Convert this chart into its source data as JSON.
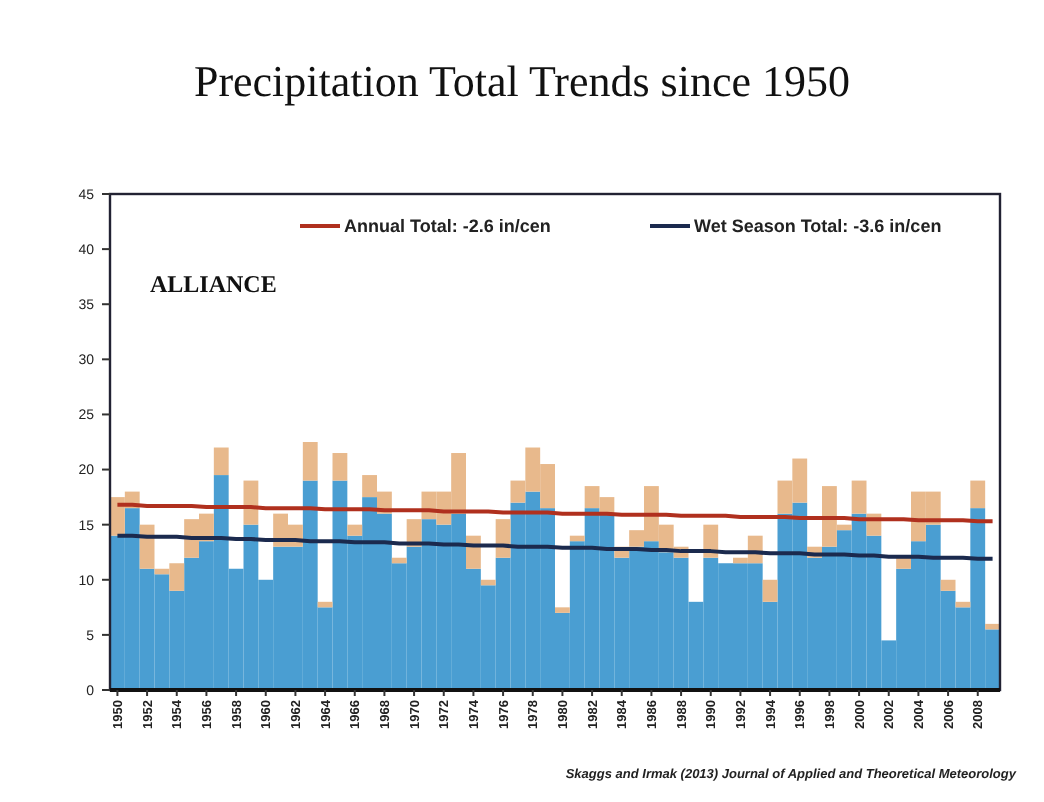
{
  "chart_data": {
    "type": "bar",
    "title": "Precipitation Total Trends since 1950",
    "annotations": [
      "ALLIANCE",
      "Skaggs and Irmak (2013) Journal of Applied and Theoretical Meteorology"
    ],
    "x": [
      1950,
      1951,
      1952,
      1953,
      1954,
      1955,
      1956,
      1957,
      1958,
      1959,
      1960,
      1961,
      1962,
      1963,
      1964,
      1965,
      1966,
      1967,
      1968,
      1969,
      1970,
      1971,
      1972,
      1973,
      1974,
      1975,
      1976,
      1977,
      1978,
      1979,
      1980,
      1981,
      1982,
      1983,
      1984,
      1985,
      1986,
      1987,
      1988,
      1989,
      1990,
      1991,
      1992,
      1993,
      1994,
      1995,
      1996,
      1997,
      1998,
      1999,
      2000,
      2001,
      2002,
      2003,
      2004,
      2005,
      2006,
      2007,
      2008,
      2009
    ],
    "xlim": [
      1949.5,
      2009.5
    ],
    "xticks": [
      1950,
      1952,
      1954,
      1956,
      1958,
      1960,
      1962,
      1964,
      1966,
      1968,
      1970,
      1972,
      1974,
      1976,
      1978,
      1980,
      1982,
      1984,
      1986,
      1988,
      1990,
      1992,
      1994,
      1996,
      1998,
      2000,
      2002,
      2004,
      2006,
      2008
    ],
    "ylim": [
      0,
      45
    ],
    "yticks": [
      0,
      5,
      10,
      15,
      20,
      25,
      30,
      35,
      40,
      45
    ],
    "legend": "top",
    "stacked": true,
    "series": [
      {
        "color": "#4a9ed2",
        "values": [
          14,
          16.5,
          11,
          10.5,
          9,
          12,
          13.5,
          19.5,
          11,
          15,
          10,
          13,
          13,
          19,
          7.5,
          19,
          14,
          17.5,
          16,
          11.5,
          13,
          15.5,
          15,
          16,
          11,
          9.5,
          12,
          17,
          18,
          16.5,
          7,
          13.5,
          16.5,
          16,
          12,
          13,
          13.5,
          12.5,
          12,
          8,
          12,
          11.5,
          11.5,
          11.5,
          8,
          16,
          17,
          12,
          13,
          14.5,
          16,
          14,
          4.5,
          11,
          13.5,
          15,
          9,
          7.5,
          16.5,
          5.5
        ]
      },
      {
        "color": "#e8b98c",
        "values": [
          3.5,
          1.5,
          4,
          0.5,
          2.5,
          3.5,
          2.5,
          2.5,
          null,
          4,
          null,
          3,
          2,
          3.5,
          0.5,
          2.5,
          1,
          2,
          2,
          0.5,
          2.5,
          2.5,
          3,
          5.5,
          3,
          0.5,
          3.5,
          2,
          4,
          4,
          0.5,
          0.5,
          2,
          1.5,
          1,
          1.5,
          5,
          2.5,
          1,
          null,
          3,
          null,
          0.5,
          2.5,
          2,
          3,
          4,
          1,
          5.5,
          0.5,
          3,
          2,
          null,
          1,
          4.5,
          3,
          1,
          0.5,
          2.5,
          0.5
        ]
      },
      {
        "type": "line",
        "name": "Annual Total: -2.6 in/cen",
        "color": "#b0301e",
        "values": [
          16.8,
          16.8,
          16.7,
          16.7,
          16.7,
          16.7,
          16.6,
          16.6,
          16.6,
          16.6,
          16.5,
          16.5,
          16.5,
          16.5,
          16.4,
          16.4,
          16.4,
          16.4,
          16.3,
          16.3,
          16.3,
          16.3,
          16.2,
          16.2,
          16.2,
          16.2,
          16.1,
          16.1,
          16.1,
          16.1,
          16.0,
          16.0,
          16.0,
          16.0,
          15.9,
          15.9,
          15.9,
          15.9,
          15.8,
          15.8,
          15.8,
          15.8,
          15.7,
          15.7,
          15.7,
          15.7,
          15.6,
          15.6,
          15.6,
          15.6,
          15.5,
          15.5,
          15.5,
          15.5,
          15.4,
          15.4,
          15.4,
          15.4,
          15.3,
          15.3
        ]
      },
      {
        "type": "line",
        "name": "Wet Season Total: -3.6 in/cen",
        "color": "#1b2a4e",
        "values": [
          14.0,
          14.0,
          13.9,
          13.9,
          13.9,
          13.8,
          13.8,
          13.8,
          13.7,
          13.7,
          13.6,
          13.6,
          13.6,
          13.5,
          13.5,
          13.5,
          13.4,
          13.4,
          13.4,
          13.3,
          13.3,
          13.3,
          13.2,
          13.2,
          13.1,
          13.1,
          13.1,
          13.0,
          13.0,
          13.0,
          12.9,
          12.9,
          12.9,
          12.8,
          12.8,
          12.8,
          12.7,
          12.7,
          12.6,
          12.6,
          12.6,
          12.5,
          12.5,
          12.5,
          12.4,
          12.4,
          12.4,
          12.3,
          12.3,
          12.3,
          12.2,
          12.2,
          12.1,
          12.1,
          12.1,
          12.0,
          12.0,
          12.0,
          11.9,
          11.9
        ]
      }
    ]
  }
}
